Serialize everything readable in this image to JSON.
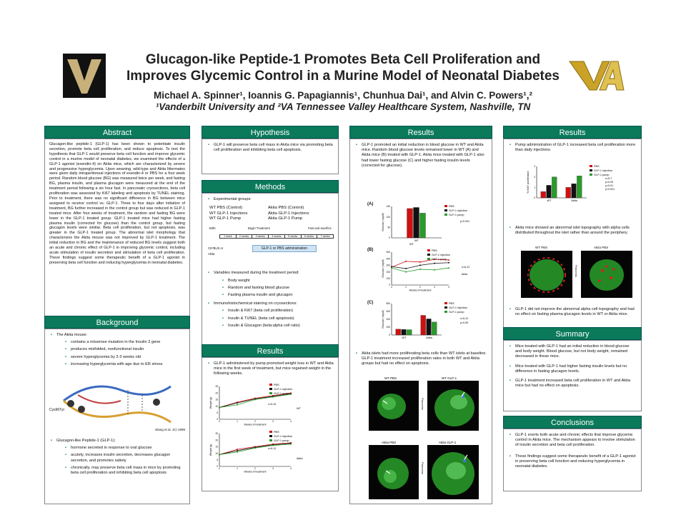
{
  "header": {
    "title_line1": "Glucagon-like Peptide-1 Promotes Beta Cell Proliferation and",
    "title_line2": "Improves Glycemic Control in a Murine Model of Neonatal Diabetes",
    "authors": "Michael A. Spinner¹, Ioannis G. Papagiannis¹, Chunhua Dai¹, and Alvin C. Powers¹,²",
    "affiliation": "¹Vanderbilt University and ²VA Tennessee Valley Healthcare System, Nashville, TN"
  },
  "abstract": {
    "heading": "Abstract",
    "text": "Glucagon-like peptide-1 (GLP-1) has been shown to potentiate insulin secretion, promote beta cell proliferation, and reduce apoptosis. To test the hypothesis that GLP-1 would preserve beta cell function and improve glycemic control in a murine model of neonatal diabetes, we examined the effects of a GLP-1 agonist (exendin-4) on Akita mice, which are characterized by severe and progressive hyperglycemia. Upon weaning, wild-type and Akita littermates were given daily intraperitoneal injections of exendin-4 or PBS for a four week period. Random blood glucose (BG) was measured twice per week, and fasting BG, plasma insulin, and plasma glucagon were measured at the end of the treatment period following a six hour fast. In pancreatic cryosections, beta cell proliferation was assessed by Ki67 labeling and apoptosis by TUNEL staining. Prior to treatment, there was no significant difference in BG between mice assigned to receive control vs. GLP-1. Three to four days after initiation of treatment, BG further increased in the control group but was reduced in GLP-1 treated mice. After four weeks of treatment, the random and fasting BG were lower in the GLP-1 treated group. GLP-1 treated mice had higher fasting plasma insulin (corrected for glucose) than the control group, but fasting glucagon levels were similar. Beta cell proliferation, but not apoptosis, was greater in the GLP-1 treated group. The abnormal islet morphology that characterizes the Akita mouse was not improved by GLP-1 treatment. The initial reduction in BG and the maintenance of reduced BG levels suggest both an acute and chronic effect of GLP-1 in improving glycemic control, including acute stimulation of insulin secretion and stimulation of beta cell proliferation. These findings suggest some therapeutic benefit of a GLP-1 agonist in preserving beta cell function and reducing hyperglycemia in neonatal diabetes."
  },
  "background": {
    "heading": "Background",
    "akita_intro": "The Akita mouse:",
    "akita_points": [
      "contains a missense mutation in the Insulin 2 gene",
      "produces misfolded, nonfunctional insulin",
      "severe hyperglycemia by 2-3 weeks old",
      "increasing hyperglycemia with age due to ER stress"
    ],
    "diagram_label": "Cys96Tyr",
    "diagram_credit": "Wang et al. JCI 1999",
    "glp_intro": "Glucagon-like Peptide-1 (GLP-1):",
    "glp_points": [
      "hormone secreted in response to oral glucose",
      "acutely, increases insulin secretion, decreases glucagon secretion, and promotes satiety",
      "chronically, may preserve beta cell mass in mice by promoting beta cell proliferation and inhibiting beta cell apoptosis"
    ]
  },
  "hypothesis": {
    "heading": "Hypothesis",
    "text": "GLP-1 will preserve beta cell mass in Akita mice via promoting beta cell proliferation and inhibiting beta cell apoptosis."
  },
  "methods": {
    "heading": "Methods",
    "groups_intro": "Experimental groups:",
    "groups_left": [
      "WT PBS (Control)",
      "WT GLP-1 Injections",
      "WT GLP-1 Pump"
    ],
    "groups_right": [
      "Akita PBS (Control)",
      "Akita GLP-1 Injections",
      "Akita GLP-1 Pump"
    ],
    "timeline_birth": "Birth",
    "timeline_begin": "Begin Treatment",
    "timeline_fast": "Fast and sacrifice",
    "timeline_wean": "C57BL/6 or Akita",
    "timeline_weeks": [
      "1 week",
      "2 weeks",
      "3 weeks",
      "4 weeks",
      "5 weeks",
      "6 weeks",
      "7 weeks"
    ],
    "timeline_admin": "GLP-1 or PBS administration",
    "measured_intro": "Variables measured during the treatment period:",
    "measured": [
      "Body weight",
      "Random and fasting blood glucose",
      "Fasting plasma insulin and glucagon"
    ],
    "stain_intro": "Immunohistochemical staining on cryosections:",
    "stain": [
      "Insulin & Ki67 (beta cell proliferation)",
      "Insulin & TUNEL (beta cell apoptosis)",
      "Insulin & Glucagon (beta:alpha cell ratio)"
    ]
  },
  "results_weight": {
    "heading": "Results",
    "text": "GLP-1 administered by pump promoted weight loss in WT and Akita mice in the first week of treatment, but mice regained weight in the following weeks.",
    "legend": [
      "PBS",
      "GLP-1 injection",
      "GLP-1 pump"
    ],
    "ylabel": "Weight (g)",
    "xlabel": "Weeks of treatment",
    "top_group": "WT",
    "top_n": "n=5-10",
    "bottom_group": "Akita",
    "bottom_n": "n=6-12"
  },
  "results_glucose": {
    "heading": "Results",
    "text": "GLP-1 promoted an initial reduction in blood glucose in WT and Akita mice. Random blood glucose levels remained lower in WT (A) and Akita mice (B) treated with GLP-1. Akita mice treated with GLP-1 also had lower fasting glucose (C) and higher fasting insulin levels (corrected for glucose).",
    "label_a": "(A)",
    "label_b": "(B)",
    "label_c": "(C)",
    "legend": [
      "PBS",
      "GLP-1 injection",
      "GLP-1 pump"
    ],
    "a_group": "WT",
    "a_p": "p<0.001",
    "b_group": "Akita",
    "b_n": "n=6-12",
    "c_groups": [
      "WT",
      "Akita"
    ],
    "c_n": "n=6-12",
    "c_p": "p<0.05",
    "ylabel": "Glucose (mg/dl)",
    "xlabel": "Weeks of treatment",
    "prolif_text": "Akita islets had more proliferating beta cells than WT islets at baseline. GLP-1 treatment increased proliferation rates in both WT and Akita groups but had no effect on apoptosis.",
    "img_labels": [
      "WT PBS",
      "WT GLP-1",
      "Akita PBS",
      "Akita GLP-1"
    ],
    "img_side": "Pancreas"
  },
  "results_right": {
    "heading": "Results",
    "pump_text": "Pump administration of GLP-1 increased beta cell proliferation more than daily injections.",
    "chart_legend": [
      "PBS",
      "GLP-1 injection",
      "GLP-1 pump"
    ],
    "chart_stats": [
      "n=5-7",
      "p<0.05",
      "p<0.01",
      "p<0.001"
    ],
    "chart_ylabel": "% Ki67 proliferation",
    "chart_groups": [
      "WT",
      "Akita"
    ],
    "alpha_text": "Akita mice showed an abnormal islet topography with alpha cells distributed throughout the islet rather than around the periphery.",
    "img_labels": [
      "WT PBS",
      "Akita PBS"
    ],
    "img_side": "Pancreas",
    "alpha_text2": "GLP-1 did not improve the abnormal alpha cell topography and had no effect on fasting plasma glucagon levels in WT or Akita mice."
  },
  "summary": {
    "heading": "Summary",
    "points": [
      "Mice treated with GLP-1 had an initial reduction in blood glucose and body weight. Blood glucose, but not body weight, remained decreased in these mice.",
      "Mice treated with GLP-1 had higher fasting insulin levels but no difference in fasting glucagon levels.",
      "GLP-1 treatment increased beta cell proliferation in WT and Akita mice but had no effect on apoptosis."
    ]
  },
  "conclusions": {
    "heading": "Conclusions",
    "points": [
      "GLP-1 exerts both acute and chronic effects that improve glycemic control in Akita mice. The mechanism appears to involve stimulation of insulin secretion and beta cell proliferation.",
      "These findings suggest some therapeutic benefit of a GLP-1 agonist in preserving beta cell function and reducing hyperglycemia in neonatal diabetes."
    ]
  },
  "chart_data": [
    {
      "type": "bar",
      "title": "(A)",
      "categories": [
        "WT"
      ],
      "series": [
        {
          "name": "PBS",
          "values": [
            140
          ]
        },
        {
          "name": "GLP-1 injection",
          "values": [
            145
          ]
        },
        {
          "name": "GLP-1 pump",
          "values": [
            118
          ]
        }
      ],
      "ylabel": "Glucose (mg/dl)",
      "ylim": [
        0,
        150
      ],
      "legend": "right"
    },
    {
      "type": "line",
      "title": "(B)",
      "x": [
        0,
        1,
        2,
        3,
        4
      ],
      "series": [
        {
          "name": "PBS",
          "values": [
            270,
            360,
            350,
            390,
            380
          ]
        },
        {
          "name": "GLP-1 injection",
          "values": [
            280,
            250,
            300,
            330,
            340
          ]
        },
        {
          "name": "GLP-1 pump",
          "values": [
            260,
            200,
            240,
            230,
            260
          ]
        }
      ],
      "xlabel": "Weeks of treatment",
      "ylabel": "Glucose (mg/dl)",
      "ylim": [
        0,
        500
      ],
      "legend": "right"
    },
    {
      "type": "bar",
      "title": "(C)",
      "categories": [
        "WT",
        "Akita"
      ],
      "series": [
        {
          "name": "PBS",
          "values": [
            150,
            500
          ]
        },
        {
          "name": "GLP-1 injection",
          "values": [
            140,
            410
          ]
        },
        {
          "name": "GLP-1 pump",
          "values": [
            135,
            330
          ]
        }
      ],
      "ylabel": "Glucose (mg/dl)",
      "ylim": [
        0,
        800
      ],
      "legend": "right"
    },
    {
      "type": "bar",
      "title": "",
      "categories": [
        "WT",
        "Akita"
      ],
      "series": [
        {
          "name": "PBS",
          "values": [
            0.6,
            1.0
          ]
        },
        {
          "name": "GLP-1 injection",
          "values": [
            1.2,
            1.35
          ]
        },
        {
          "name": "GLP-1 pump",
          "values": [
            2.0,
            2.1
          ]
        }
      ],
      "ylabel": "% Ki67 proliferation",
      "ylim": [
        0,
        3
      ],
      "legend": "right"
    },
    {
      "type": "line",
      "title": "WT",
      "x": [
        0,
        1,
        2,
        3,
        4
      ],
      "series": [
        {
          "name": "PBS",
          "values": [
            9,
            13,
            16,
            18,
            20
          ]
        },
        {
          "name": "GLP-1 injection",
          "values": [
            9,
            12.5,
            15.5,
            17.5,
            19.5
          ]
        },
        {
          "name": "GLP-1 pump",
          "values": [
            9,
            11,
            15,
            17,
            19
          ]
        }
      ],
      "xlabel": "Weeks of treatment",
      "ylabel": "Weight (g)",
      "ylim": [
        0,
        25
      ],
      "legend": "top-right"
    },
    {
      "type": "line",
      "title": "Akita",
      "x": [
        0,
        1,
        2,
        3,
        4
      ],
      "series": [
        {
          "name": "PBS",
          "values": [
            9,
            13,
            15,
            17,
            18
          ]
        },
        {
          "name": "GLP-1 injection",
          "values": [
            9,
            12,
            14.5,
            16.5,
            17.5
          ]
        },
        {
          "name": "GLP-1 pump",
          "values": [
            9,
            11,
            14,
            16,
            17
          ]
        }
      ],
      "xlabel": "Weeks of treatment",
      "ylabel": "Weight (g)",
      "ylim": [
        0,
        25
      ],
      "legend": "top-right"
    }
  ],
  "colors": {
    "accent": "#0a7a5a",
    "pbs": "#d01010",
    "inj": "#111111",
    "pump": "#2a9a2a",
    "logo_gold": "#c9a227"
  }
}
